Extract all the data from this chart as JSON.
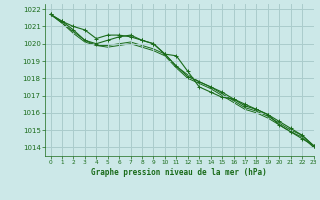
{
  "title": "Graphe pression niveau de la mer (hPa)",
  "bg_color": "#cce8e8",
  "grid_color": "#aacccc",
  "line_color": "#1a6b1a",
  "xlim": [
    -0.5,
    23
  ],
  "ylim": [
    1013.5,
    1022.3
  ],
  "yticks": [
    1014,
    1015,
    1016,
    1017,
    1018,
    1019,
    1020,
    1021,
    1022
  ],
  "xticks": [
    0,
    1,
    2,
    3,
    4,
    5,
    6,
    7,
    8,
    9,
    10,
    11,
    12,
    13,
    14,
    15,
    16,
    17,
    18,
    19,
    20,
    21,
    22,
    23
  ],
  "series": [
    [
      1021.7,
      1021.3,
      1020.8,
      1020.2,
      1020.0,
      1020.2,
      1020.4,
      1020.5,
      1020.2,
      1020.0,
      1019.4,
      1019.3,
      1018.4,
      1017.5,
      1017.2,
      1016.9,
      1016.8,
      1016.5,
      1016.2,
      1015.9,
      1015.3,
      1014.9,
      1014.5,
      1014.1
    ],
    [
      1021.7,
      1021.3,
      1021.0,
      1020.8,
      1020.3,
      1020.5,
      1020.5,
      1020.4,
      1020.2,
      1020.0,
      1019.4,
      1018.7,
      1018.1,
      1017.8,
      1017.5,
      1017.2,
      1016.8,
      1016.4,
      1016.2,
      1015.9,
      1015.5,
      1015.1,
      1014.7,
      1014.1
    ],
    [
      1021.7,
      1021.2,
      1020.7,
      1020.2,
      1019.9,
      1019.9,
      1020.0,
      1020.1,
      1019.9,
      1019.7,
      1019.4,
      1018.7,
      1018.2,
      1017.8,
      1017.5,
      1017.1,
      1016.7,
      1016.3,
      1016.1,
      1015.8,
      1015.4,
      1015.0,
      1014.7,
      1014.1
    ],
    [
      1021.7,
      1021.2,
      1020.6,
      1020.1,
      1019.9,
      1019.8,
      1019.9,
      1020.0,
      1019.8,
      1019.6,
      1019.3,
      1018.6,
      1018.0,
      1017.7,
      1017.4,
      1017.0,
      1016.6,
      1016.2,
      1016.0,
      1015.7,
      1015.3,
      1014.9,
      1014.6,
      1014.0
    ]
  ]
}
